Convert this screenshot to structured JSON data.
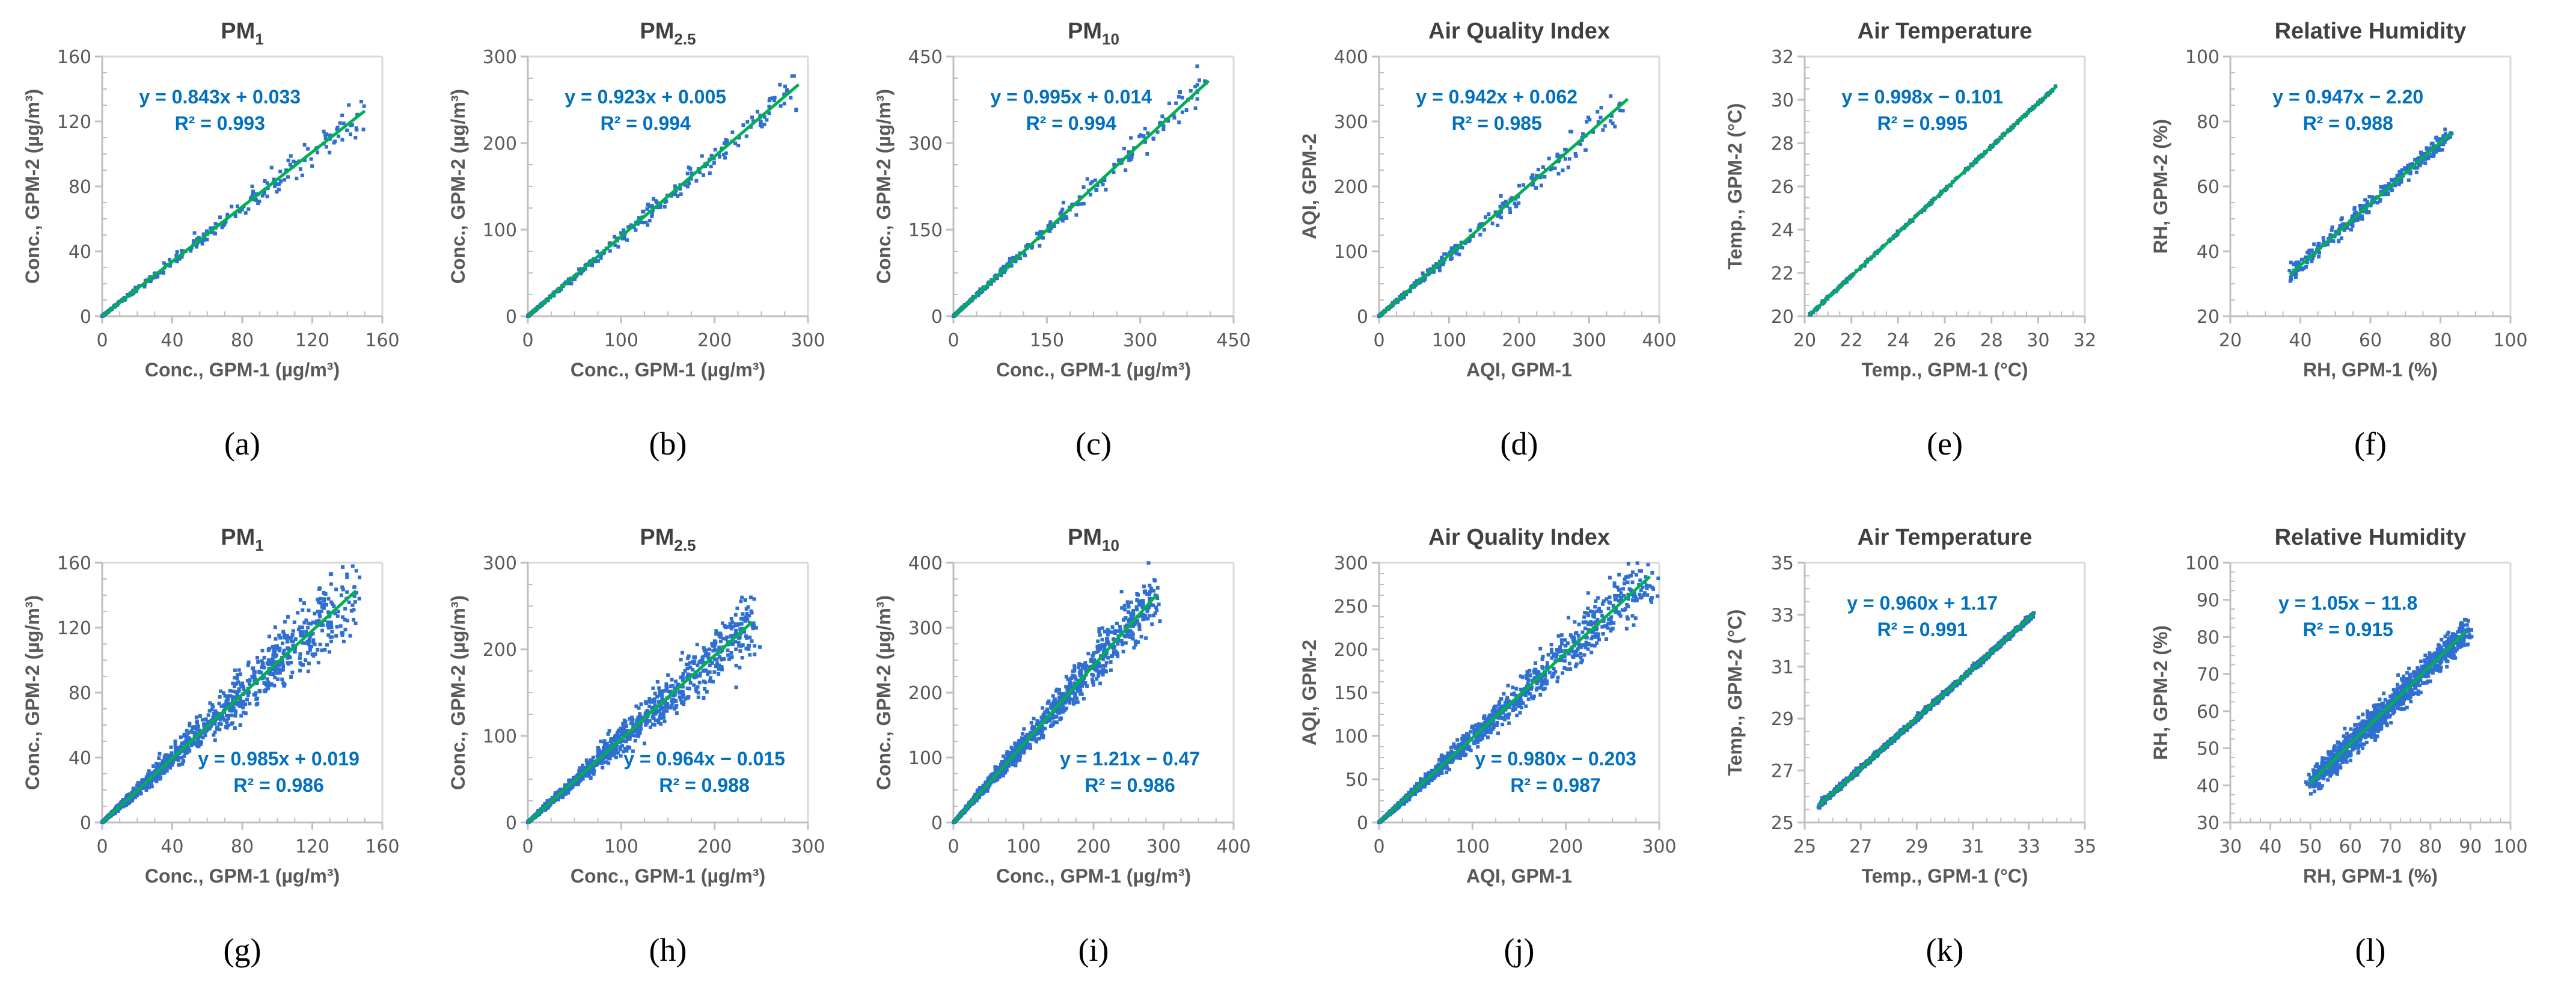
{
  "colors": {
    "points": "#2E6FD0",
    "fit_line": "#00B050",
    "axis": "#BFBFBF",
    "equation": "#0070C0"
  },
  "chart_data": [
    {
      "id": "a",
      "type": "scatter",
      "panel_label": "(a)",
      "title": "PM",
      "title_sub": "1",
      "xlabel": "Conc., GPM-1 (µg/m³)",
      "ylabel": "Conc., GPM-2 (µg/m³)",
      "xlim": [
        0,
        160
      ],
      "ylim": [
        0,
        160
      ],
      "xticks": [
        0,
        40,
        80,
        120,
        160
      ],
      "yticks": [
        0,
        40,
        80,
        120,
        160
      ],
      "slope": 0.843,
      "intercept": 0.033,
      "equation": "y = 0.843x + 0.033",
      "r2": "R² = 0.993",
      "data_x_range": [
        0,
        150
      ],
      "noise": 0.04,
      "eq_position": "top-left"
    },
    {
      "id": "b",
      "type": "scatter",
      "panel_label": "(b)",
      "title": "PM",
      "title_sub": "2.5",
      "xlabel": "Conc., GPM-1 (µg/m³)",
      "ylabel": "Conc., GPM-2 (µg/m³)",
      "xlim": [
        0,
        300
      ],
      "ylim": [
        0,
        300
      ],
      "xticks": [
        0,
        100,
        200,
        300
      ],
      "yticks": [
        0,
        100,
        200,
        300
      ],
      "slope": 0.923,
      "intercept": 0.005,
      "equation": "y = 0.923x + 0.005",
      "r2": "R² = 0.994",
      "data_x_range": [
        0,
        290
      ],
      "noise": 0.04,
      "eq_position": "top-left"
    },
    {
      "id": "c",
      "type": "scatter",
      "panel_label": "(c)",
      "title": "PM",
      "title_sub": "10",
      "xlabel": "Conc., GPM-1 (µg/m³)",
      "ylabel": "Conc., GPM-2 (µg/m³)",
      "xlim": [
        0,
        450
      ],
      "ylim": [
        0,
        450
      ],
      "xticks": [
        0,
        150,
        300,
        450
      ],
      "yticks": [
        0,
        150,
        300,
        450
      ],
      "slope": 0.995,
      "intercept": 0.014,
      "equation": "y = 0.995x + 0.014",
      "r2": "R² = 0.994",
      "data_x_range": [
        0,
        410
      ],
      "noise": 0.04,
      "eq_position": "top-left"
    },
    {
      "id": "d",
      "type": "scatter",
      "panel_label": "(d)",
      "title": "Air Quality Index",
      "title_sub": "",
      "xlabel": "AQI, GPM-1",
      "ylabel": "AQI, GPM-2",
      "xlim": [
        0,
        400
      ],
      "ylim": [
        0,
        400
      ],
      "xticks": [
        0,
        100,
        200,
        300,
        400
      ],
      "yticks": [
        0,
        100,
        200,
        300,
        400
      ],
      "slope": 0.942,
      "intercept": 0.062,
      "equation": "y = 0.942x + 0.062",
      "r2": "R² = 0.985",
      "data_x_range": [
        0,
        355
      ],
      "noise": 0.05,
      "eq_position": "top-left"
    },
    {
      "id": "e",
      "type": "scatter",
      "panel_label": "(e)",
      "title": "Air Temperature",
      "title_sub": "",
      "xlabel": "Temp., GPM-1 (°C)",
      "ylabel": "Temp., GPM-2 (°C)",
      "xlim": [
        20,
        32
      ],
      "ylim": [
        20,
        32
      ],
      "xticks": [
        20,
        22,
        24,
        26,
        28,
        30,
        32
      ],
      "yticks": [
        20,
        22,
        24,
        26,
        28,
        30,
        32
      ],
      "slope": 0.998,
      "intercept": -0.101,
      "equation": "y = 0.998x − 0.101",
      "r2": "R² = 0.995",
      "data_x_range": [
        20.2,
        30.8
      ],
      "noise": 0.004,
      "eq_position": "top-left"
    },
    {
      "id": "f",
      "type": "scatter",
      "panel_label": "(f)",
      "title": "Relative Humidity",
      "title_sub": "",
      "xlabel": "RH, GPM-1 (%)",
      "ylabel": "RH, GPM-2 (%)",
      "xlim": [
        20,
        100
      ],
      "ylim": [
        20,
        100
      ],
      "xticks": [
        20,
        40,
        60,
        80,
        100
      ],
      "yticks": [
        20,
        40,
        60,
        80,
        100
      ],
      "slope": 0.947,
      "intercept": -2.2,
      "equation": "y = 0.947x − 2.20",
      "r2": "R² = 0.988",
      "data_x_range": [
        37,
        83
      ],
      "noise": 0.025,
      "eq_position": "top-left"
    },
    {
      "id": "g",
      "type": "scatter",
      "panel_label": "(g)",
      "title": "PM",
      "title_sub": "1",
      "xlabel": "Conc., GPM-1 (µg/m³)",
      "ylabel": "Conc., GPM-2 (µg/m³)",
      "xlim": [
        0,
        160
      ],
      "ylim": [
        0,
        160
      ],
      "xticks": [
        0,
        40,
        80,
        120,
        160
      ],
      "yticks": [
        0,
        40,
        80,
        120,
        160
      ],
      "slope": 0.985,
      "intercept": 0.019,
      "equation": "y = 0.985x + 0.019",
      "r2": "R² = 0.986",
      "data_x_range": [
        0,
        145
      ],
      "noise": 0.09,
      "eq_position": "bottom-right"
    },
    {
      "id": "h",
      "type": "scatter",
      "panel_label": "(h)",
      "title": "PM",
      "title_sub": "2.5",
      "xlabel": "Conc., GPM-1 (µg/m³)",
      "ylabel": "Conc., GPM-2 (µg/m³)",
      "xlim": [
        0,
        300
      ],
      "ylim": [
        0,
        300
      ],
      "xticks": [
        0,
        100,
        200,
        300
      ],
      "yticks": [
        0,
        100,
        200,
        300
      ],
      "slope": 0.964,
      "intercept": -0.015,
      "equation": "y = 0.964x − 0.015",
      "r2": "R² = 0.988",
      "data_x_range": [
        0,
        240
      ],
      "noise": 0.08,
      "eq_position": "bottom-right"
    },
    {
      "id": "i",
      "type": "scatter",
      "panel_label": "(i)",
      "title": "PM",
      "title_sub": "10",
      "xlabel": "Conc., GPM-1 (µg/m³)",
      "ylabel": "Conc., GPM-2 (µg/m³)",
      "xlim": [
        0,
        400
      ],
      "ylim": [
        0,
        400
      ],
      "xticks": [
        0,
        100,
        200,
        300,
        400
      ],
      "yticks": [
        0,
        100,
        200,
        300,
        400
      ],
      "slope": 1.21,
      "intercept": -0.47,
      "equation": "y = 1.21x − 0.47",
      "r2": "R² = 0.986",
      "data_x_range": [
        0,
        290
      ],
      "noise": 0.08,
      "eq_position": "bottom-right"
    },
    {
      "id": "j",
      "type": "scatter",
      "panel_label": "(j)",
      "title": "Air Quality Index",
      "title_sub": "",
      "xlabel": "AQI, GPM-1",
      "ylabel": "AQI, GPM-2",
      "xlim": [
        0,
        300
      ],
      "ylim": [
        0,
        300
      ],
      "xticks": [
        0,
        100,
        200,
        300
      ],
      "yticks": [
        0,
        50,
        100,
        150,
        200,
        250,
        300
      ],
      "slope": 0.98,
      "intercept": -0.203,
      "equation": "y = 0.980x − 0.203",
      "r2": "R² = 0.987",
      "data_x_range": [
        0,
        290
      ],
      "noise": 0.07,
      "eq_position": "bottom-right"
    },
    {
      "id": "k",
      "type": "scatter",
      "panel_label": "(k)",
      "title": "Air Temperature",
      "title_sub": "",
      "xlabel": "Temp., GPM-1 (°C)",
      "ylabel": "Temp., GPM-2 (°C)",
      "xlim": [
        25,
        35
      ],
      "ylim": [
        25,
        35
      ],
      "xticks": [
        25,
        27,
        29,
        31,
        33,
        35
      ],
      "yticks": [
        25,
        27,
        29,
        31,
        33,
        35
      ],
      "slope": 0.96,
      "intercept": 1.17,
      "equation": "y = 0.960x + 1.17",
      "r2": "R² = 0.991",
      "data_x_range": [
        25.5,
        33.2
      ],
      "noise": 0.008,
      "eq_position": "top-left"
    },
    {
      "id": "l",
      "type": "scatter",
      "panel_label": "(l)",
      "title": "Relative Humidity",
      "title_sub": "",
      "xlabel": "RH, GPM-1 (%)",
      "ylabel": "RH, GPM-2 (%)",
      "xlim": [
        30,
        100
      ],
      "ylim": [
        30,
        100
      ],
      "xticks": [
        30,
        40,
        50,
        60,
        70,
        80,
        90,
        100
      ],
      "yticks": [
        30,
        40,
        50,
        60,
        70,
        80,
        90,
        100
      ],
      "slope": 1.05,
      "intercept": -11.8,
      "equation": "y = 1.05x − 11.8",
      "r2": "R² = 0.915",
      "data_x_range": [
        50,
        89
      ],
      "noise": 0.04,
      "eq_position": "top-left"
    }
  ]
}
